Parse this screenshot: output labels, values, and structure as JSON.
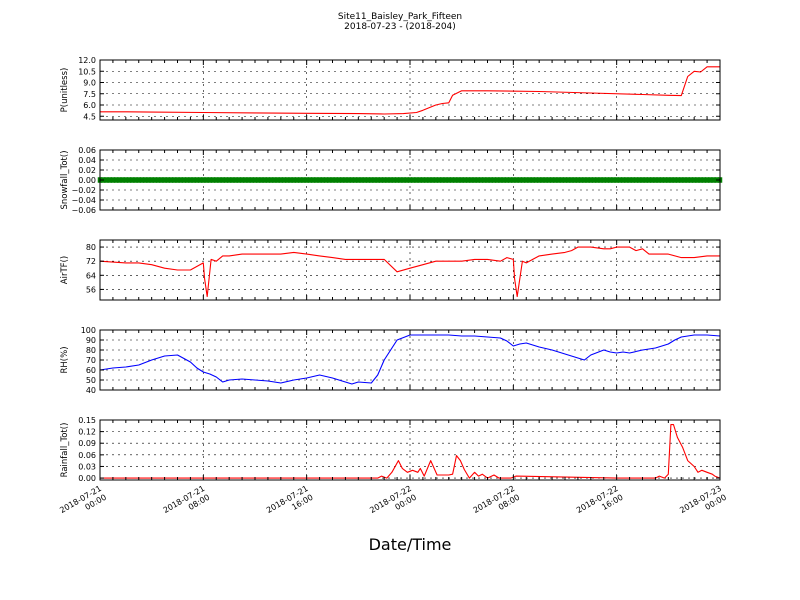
{
  "figure": {
    "title_line1": "Site11_Baisley_Park_Fifteen",
    "title_line2": "2018-07-23 - (2018-204)",
    "xlabel": "Date/Time"
  },
  "chart_data": [
    {
      "type": "line",
      "ylabel": "P(unitless)",
      "ylim": [
        4.0,
        12.0
      ],
      "yticks": [
        4.5,
        6.0,
        7.5,
        9.0,
        10.5,
        12.0
      ],
      "ytick_labels": [
        "4.5",
        "6.0",
        "7.5",
        "9.0",
        "10.5",
        "12.0"
      ],
      "xlim": [
        0,
        48
      ],
      "grid": true,
      "series": [
        {
          "color": "#ff0000",
          "x": [
            0,
            2,
            4,
            8,
            12,
            16,
            20,
            22,
            23.5,
            24.5,
            25,
            26,
            26.5,
            27,
            27.3,
            28,
            30,
            34,
            38,
            42,
            44,
            45,
            45.5,
            46,
            46.5,
            47,
            47.5,
            48
          ],
          "y": [
            5.1,
            5.1,
            5.05,
            5.0,
            4.95,
            4.9,
            4.85,
            4.8,
            4.85,
            5.0,
            5.3,
            6.0,
            6.2,
            6.3,
            7.3,
            7.9,
            7.9,
            7.8,
            7.6,
            7.4,
            7.3,
            7.25,
            9.8,
            10.5,
            10.4,
            11.1,
            11.1,
            11.1
          ]
        }
      ]
    },
    {
      "type": "scatter",
      "ylabel": "Snowfall_Tot()",
      "ylim": [
        -0.06,
        0.06
      ],
      "yticks": [
        -0.06,
        -0.04,
        -0.02,
        0.0,
        0.02,
        0.04,
        0.06
      ],
      "ytick_labels": [
        "−0.06",
        "−0.04",
        "−0.02",
        "0.00",
        "0.02",
        "0.04",
        "0.06"
      ],
      "xlim": [
        0,
        48
      ],
      "grid": true,
      "series": [
        {
          "color": "#008000",
          "x_start": 0,
          "x_end": 48,
          "x_step": 0.25,
          "y_constant": 0.0
        }
      ]
    },
    {
      "type": "line",
      "ylabel": "AirTF()",
      "ylim": [
        50,
        84
      ],
      "yticks": [
        56,
        64,
        72,
        80
      ],
      "ytick_labels": [
        "56",
        "64",
        "72",
        "80"
      ],
      "xlim": [
        0,
        48
      ],
      "grid": true,
      "series": [
        {
          "color": "#ff0000",
          "x": [
            0,
            2,
            3,
            4,
            5,
            6,
            7,
            8,
            8.1,
            8.3,
            8.6,
            9,
            9.5,
            10,
            11,
            12,
            13,
            14,
            15,
            16,
            17,
            18,
            19,
            20,
            21,
            22,
            23,
            24,
            25,
            26,
            27,
            28,
            29,
            30,
            31,
            31.5,
            32,
            32.1,
            32.3,
            32.7,
            33,
            33.5,
            34,
            35,
            36,
            36.5,
            37,
            38,
            39,
            39.5,
            40,
            41,
            41.5,
            42,
            42.5,
            43,
            44,
            45,
            46,
            47,
            48
          ],
          "y": [
            72,
            71,
            71,
            70,
            68,
            67,
            67,
            71,
            62,
            52,
            73,
            72,
            75,
            75,
            76,
            76,
            76,
            76,
            77,
            76,
            75,
            74,
            73,
            73,
            73,
            73,
            66,
            68,
            70,
            72,
            72,
            72,
            73,
            73,
            72,
            74,
            73,
            62,
            52,
            72,
            71,
            73,
            75,
            76,
            77,
            78,
            80,
            80,
            79,
            79,
            80,
            80,
            78,
            79,
            76,
            76,
            76,
            74,
            74,
            75,
            75
          ]
        }
      ]
    },
    {
      "type": "line",
      "ylabel": "RH(%)",
      "ylim": [
        40,
        100
      ],
      "yticks": [
        40,
        50,
        60,
        70,
        80,
        90,
        100
      ],
      "ytick_labels": [
        "40",
        "50",
        "60",
        "70",
        "80",
        "90",
        "100"
      ],
      "xlim": [
        0,
        48
      ],
      "grid": true,
      "series": [
        {
          "color": "#0000ff",
          "x": [
            0,
            1,
            2,
            3,
            4,
            5,
            6,
            7,
            7.5,
            8,
            8.5,
            9,
            9.5,
            10,
            11,
            12,
            13,
            14,
            15,
            16,
            17,
            18,
            19,
            19.5,
            20,
            21,
            21.5,
            22,
            23,
            24,
            25,
            26,
            27,
            28,
            29,
            30,
            31,
            31.5,
            32,
            32.5,
            33,
            34,
            35,
            36,
            37,
            37.5,
            38,
            39,
            39.5,
            40,
            40.5,
            41,
            42,
            43,
            43.5,
            44,
            44.5,
            45,
            46,
            47,
            48
          ],
          "y": [
            60,
            62,
            63,
            65,
            70,
            74,
            75,
            68,
            62,
            58,
            56,
            53,
            48,
            50,
            51,
            50,
            49,
            47,
            50,
            52,
            55,
            52,
            48,
            46,
            48,
            47,
            55,
            70,
            90,
            95,
            95,
            95,
            95,
            94,
            94,
            93,
            92,
            89,
            84,
            86,
            87,
            83,
            80,
            76,
            72,
            70,
            75,
            80,
            78,
            77,
            78,
            77,
            80,
            82,
            84,
            86,
            90,
            93,
            95,
            95,
            94
          ]
        }
      ]
    },
    {
      "type": "line",
      "ylabel": "Rainfall_Tot()",
      "ylim": [
        -0.005,
        0.15
      ],
      "yticks": [
        0.0,
        0.03,
        0.06,
        0.09,
        0.12,
        0.15
      ],
      "ytick_labels": [
        "0.00",
        "0.03",
        "0.06",
        "0.09",
        "0.12",
        "0.15"
      ],
      "xlim": [
        0,
        48
      ],
      "grid": true,
      "series": [
        {
          "color": "#ff0000",
          "x": [
            0,
            21.5,
            21.8,
            22.2,
            22.6,
            23.1,
            23.4,
            23.8,
            24.2,
            24.6,
            24.8,
            25.1,
            25.6,
            26.1,
            26.6,
            27.0,
            27.3,
            27.6,
            27.9,
            28.2,
            28.6,
            29.0,
            29.3,
            29.6,
            30,
            30.5,
            30.9,
            31.3,
            31.8,
            32.2,
            40,
            43.0,
            43.3,
            43.7,
            44.0,
            44.2,
            44.4,
            44.7,
            45.1,
            45.5,
            46.0,
            46.3,
            46.6,
            47.0,
            47.4,
            47.6,
            48
          ],
          "y": [
            0,
            0,
            0.005,
            0.0,
            0.015,
            0.045,
            0.025,
            0.015,
            0.02,
            0.015,
            0.025,
            0.005,
            0.045,
            0.008,
            0.008,
            0.008,
            0.01,
            0.058,
            0.045,
            0.022,
            0.0,
            0.015,
            0.005,
            0.01,
            0.0,
            0.008,
            0.0,
            0.0,
            0.0,
            0.005,
            0.0,
            0.0,
            0.005,
            0.0,
            0.01,
            0.138,
            0.138,
            0.105,
            0.08,
            0.045,
            0.03,
            0.015,
            0.02,
            0.015,
            0.01,
            0.005,
            0.0
          ]
        }
      ]
    }
  ],
  "x_axis": {
    "range": [
      0,
      48
    ],
    "tick_values": [
      0,
      8,
      16,
      24,
      32,
      40,
      48
    ],
    "tick_labels": [
      [
        "2018-07-21",
        "00:00"
      ],
      [
        "2018-07-21",
        "08:00"
      ],
      [
        "2018-07-21",
        "16:00"
      ],
      [
        "2018-07-22",
        "00:00"
      ],
      [
        "2018-07-22",
        "08:00"
      ],
      [
        "2018-07-22",
        "16:00"
      ],
      [
        "2018-07-23",
        "00:00"
      ]
    ]
  }
}
